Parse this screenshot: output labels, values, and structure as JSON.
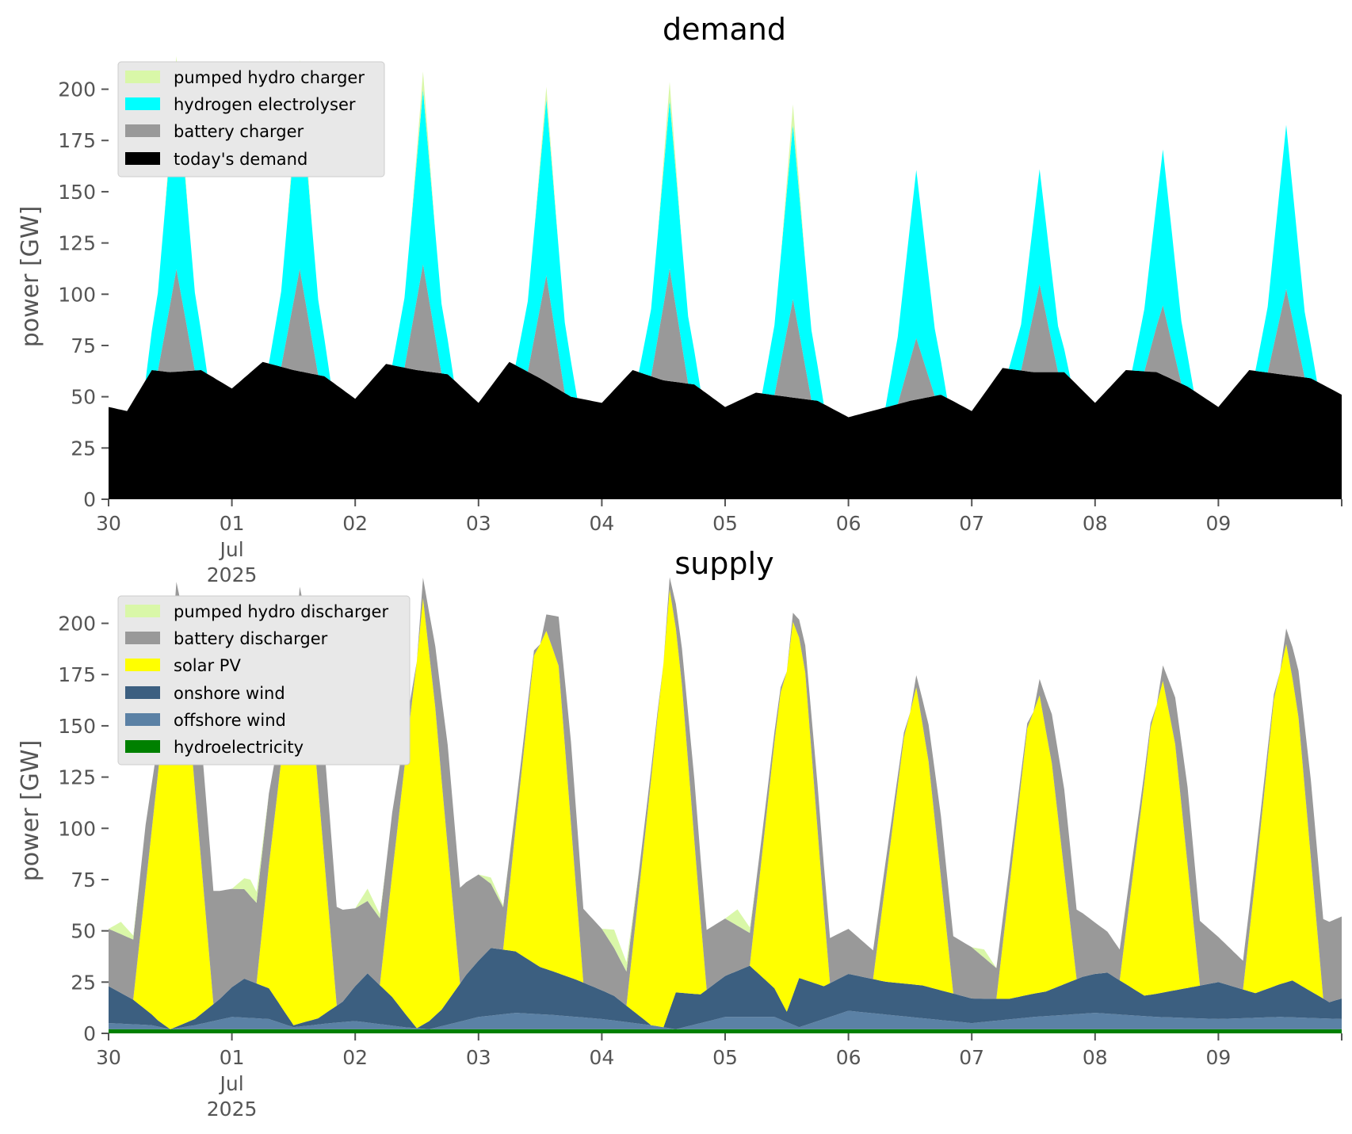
{
  "chart_data": [
    {
      "type": "area",
      "stacked": true,
      "title": "demand",
      "ylabel": "power [GW]",
      "xlabel": "",
      "ylim": [
        0,
        218
      ],
      "yticks": [
        0,
        25,
        50,
        75,
        100,
        125,
        150,
        175,
        200
      ],
      "x_range_days": [
        0,
        10
      ],
      "xtick_labels": [
        "30",
        "01",
        "02",
        "03",
        "04",
        "05",
        "06",
        "07",
        "08",
        "09"
      ],
      "xtick_sublabels": {
        "month": "Jul",
        "year": "2025"
      },
      "legend_position": "upper-left",
      "grid": false,
      "layers": [
        {
          "name": "today's demand",
          "color": "#000000",
          "x": [
            0,
            0.15,
            0.35,
            0.5,
            0.75,
            1,
            1.25,
            1.5,
            1.75,
            2,
            2.25,
            2.5,
            2.75,
            3,
            3.25,
            3.5,
            3.75,
            4,
            4.25,
            4.5,
            4.75,
            5,
            5.25,
            5.5,
            5.75,
            6,
            6.25,
            6.5,
            6.75,
            7,
            7.25,
            7.5,
            7.75,
            8,
            8.25,
            8.5,
            8.75,
            9,
            9.25,
            9.5,
            9.75,
            10
          ],
          "values": [
            45,
            43,
            63,
            62,
            63,
            54,
            67,
            63,
            60,
            49,
            66,
            63,
            61,
            47,
            67,
            59,
            50,
            47,
            63,
            58,
            56,
            45,
            52,
            50,
            48,
            40,
            44,
            48,
            51,
            43,
            64,
            62,
            62,
            47,
            63,
            62,
            55,
            45,
            63,
            61,
            59,
            51
          ]
        },
        {
          "name": "battery charger",
          "color": "#999999",
          "x": [
            0.4,
            0.55,
            0.7,
            1.4,
            1.55,
            1.7,
            2.4,
            2.55,
            2.7,
            3.4,
            3.55,
            3.7,
            4.4,
            4.55,
            4.7,
            5.4,
            5.55,
            5.7,
            6.4,
            6.55,
            6.7,
            7.4,
            7.55,
            7.7,
            8.4,
            8.55,
            8.7,
            9.4,
            9.55,
            9.7
          ],
          "values": [
            0,
            50,
            0,
            0,
            50,
            0,
            0,
            52,
            0,
            0,
            52,
            0,
            0,
            55,
            0,
            0,
            48,
            0,
            0,
            30,
            0,
            0,
            43,
            0,
            0,
            34,
            0,
            0,
            42,
            0
          ]
        },
        {
          "name": "hydrogen electrolyser",
          "color": "#00ffff",
          "x": [
            0.3,
            0.55,
            0.8,
            1.3,
            1.55,
            1.8,
            2.3,
            2.55,
            2.8,
            3.3,
            3.55,
            3.8,
            4.3,
            4.55,
            4.8,
            5.3,
            5.55,
            5.8,
            6.3,
            6.55,
            6.8,
            7.3,
            7.55,
            7.8,
            8.3,
            8.55,
            8.8,
            9.3,
            9.55,
            9.8
          ],
          "values": [
            0,
            95,
            0,
            0,
            92,
            0,
            0,
            85,
            0,
            0,
            86,
            0,
            0,
            82,
            0,
            0,
            85,
            0,
            0,
            82,
            0,
            0,
            56,
            0,
            0,
            76,
            0,
            0,
            80,
            0
          ]
        },
        {
          "name": "pumped hydro charger",
          "color": "#d9f7a8",
          "x": [
            0.45,
            0.55,
            0.65,
            1.45,
            1.55,
            1.65,
            2.45,
            2.55,
            2.65,
            3.45,
            3.55,
            3.65,
            4.45,
            4.55,
            4.65,
            5.45,
            5.55,
            5.65
          ],
          "values": [
            0,
            9,
            0,
            0,
            10,
            0,
            0,
            9,
            0,
            0,
            6,
            0,
            0,
            9,
            0,
            0,
            10,
            0
          ]
        }
      ]
    },
    {
      "type": "area",
      "stacked": true,
      "title": "supply",
      "ylabel": "power [GW]",
      "xlabel": "",
      "ylim": [
        0,
        218
      ],
      "yticks": [
        0,
        25,
        50,
        75,
        100,
        125,
        150,
        175,
        200
      ],
      "x_range_days": [
        0,
        10
      ],
      "xtick_labels": [
        "30",
        "01",
        "02",
        "03",
        "04",
        "05",
        "06",
        "07",
        "08",
        "09"
      ],
      "xtick_sublabels": {
        "month": "Jul",
        "year": "2025"
      },
      "legend_position": "upper-left",
      "grid": false,
      "layers": [
        {
          "name": "hydroelectricity",
          "color": "#008000",
          "x": [
            0,
            10
          ],
          "values": [
            2,
            2
          ]
        },
        {
          "name": "offshore wind",
          "color": "#5b81a5",
          "x": [
            0,
            0.35,
            0.5,
            0.7,
            1,
            1.3,
            1.5,
            1.8,
            2,
            2.4,
            2.6,
            3,
            3.3,
            3.6,
            4,
            4.4,
            4.6,
            5,
            5.4,
            5.6,
            6,
            6.5,
            7,
            7.5,
            8,
            8.5,
            9,
            9.5,
            10
          ],
          "values": [
            3,
            2,
            0,
            2,
            6,
            5,
            1,
            3,
            4,
            1,
            0,
            6,
            8,
            7,
            5,
            2,
            0,
            6,
            6,
            1,
            9,
            6,
            3,
            6,
            8,
            6,
            5,
            6,
            5
          ]
        },
        {
          "name": "onshore wind",
          "color": "#3c5f80",
          "x": [
            0,
            0.2,
            0.4,
            0.5,
            0.7,
            0.9,
            1.1,
            1.3,
            1.5,
            1.7,
            1.9,
            2.1,
            2.3,
            2.5,
            2.7,
            2.9,
            3.1,
            3.3,
            3.5,
            3.8,
            4.1,
            4.4,
            4.5,
            4.6,
            4.8,
            5.0,
            5.2,
            5.4,
            5.5,
            5.6,
            5.8,
            6.0,
            6.3,
            6.6,
            7.0,
            7.3,
            7.6,
            7.9,
            8.1,
            8.4,
            8.7,
            9.0,
            9.3,
            9.6,
            9.9,
            10
          ],
          "values": [
            18,
            12,
            3,
            0,
            3,
            10,
            19,
            15,
            1,
            3,
            10,
            24,
            14,
            0,
            8,
            22,
            33,
            30,
            23,
            18,
            12,
            0,
            0,
            18,
            14,
            20,
            25,
            14,
            5,
            24,
            16,
            18,
            16,
            16,
            12,
            10,
            12,
            18,
            20,
            10,
            14,
            18,
            12,
            18,
            8,
            10
          ]
        },
        {
          "name": "solar PV",
          "color": "#ffff00",
          "x": [
            0.2,
            0.45,
            0.55,
            0.65,
            0.85,
            1.2,
            1.45,
            1.55,
            1.65,
            1.85,
            2.2,
            2.45,
            2.55,
            2.65,
            2.85,
            3.2,
            3.45,
            3.55,
            3.65,
            3.85,
            4.2,
            4.45,
            4.55,
            4.65,
            4.85,
            5.2,
            5.45,
            5.55,
            5.65,
            5.85,
            6.2,
            6.45,
            6.55,
            6.65,
            6.85,
            7.2,
            7.45,
            7.55,
            7.65,
            7.85,
            8.2,
            8.45,
            8.55,
            8.65,
            8.85,
            9.2,
            9.45,
            9.55,
            9.65,
            9.85
          ],
          "values": [
            0,
            150,
            205,
            150,
            0,
            0,
            150,
            202,
            150,
            0,
            0,
            150,
            208,
            150,
            0,
            0,
            150,
            165,
            150,
            0,
            0,
            150,
            205,
            150,
            0,
            0,
            150,
            182,
            150,
            0,
            0,
            120,
            145,
            110,
            0,
            0,
            130,
            145,
            110,
            0,
            0,
            130,
            152,
            120,
            0,
            0,
            140,
            165,
            130,
            0
          ]
        },
        {
          "name": "battery discharger",
          "color": "#999999",
          "x": [
            0,
            0.3,
            0.5,
            0.75,
            1,
            1.3,
            1.5,
            1.75,
            2,
            2.3,
            2.5,
            2.75,
            3,
            3.3,
            3.5,
            3.75,
            4,
            4.3,
            4.5,
            4.75,
            5,
            5.3,
            5.5,
            5.75,
            6,
            6.3,
            6.5,
            6.75,
            7,
            7.3,
            7.5,
            7.75,
            8,
            8.3,
            8.5,
            8.75,
            9,
            9.3,
            9.5,
            9.75,
            10
          ],
          "values": [
            28,
            30,
            0,
            60,
            48,
            35,
            0,
            55,
            38,
            30,
            0,
            50,
            42,
            10,
            0,
            40,
            30,
            10,
            0,
            30,
            28,
            10,
            0,
            22,
            22,
            10,
            0,
            30,
            25,
            10,
            0,
            40,
            25,
            10,
            0,
            38,
            22,
            10,
            0,
            38,
            40
          ]
        },
        {
          "name": "pumped hydro discharger",
          "color": "#d9f7a8",
          "x": [
            0,
            0.1,
            0.25,
            1.0,
            1.15,
            1.3,
            2.0,
            2.1,
            2.25,
            3.0,
            3.1,
            3.25,
            4.0,
            4.1,
            4.3,
            5.0,
            5.1,
            5.25,
            7.0,
            7.1,
            7.2
          ],
          "values": [
            0,
            6,
            0,
            0,
            8,
            0,
            0,
            6,
            0,
            0,
            3,
            0,
            0,
            9,
            0,
            0,
            8,
            0,
            0,
            4,
            0
          ]
        }
      ]
    }
  ],
  "legends": {
    "demand": [
      "pumped hydro charger",
      "hydrogen electrolyser",
      "battery charger",
      "today's demand"
    ],
    "supply": [
      "pumped hydro discharger",
      "battery discharger",
      "solar PV",
      "onshore wind",
      "offshore wind",
      "hydroelectricity"
    ]
  }
}
